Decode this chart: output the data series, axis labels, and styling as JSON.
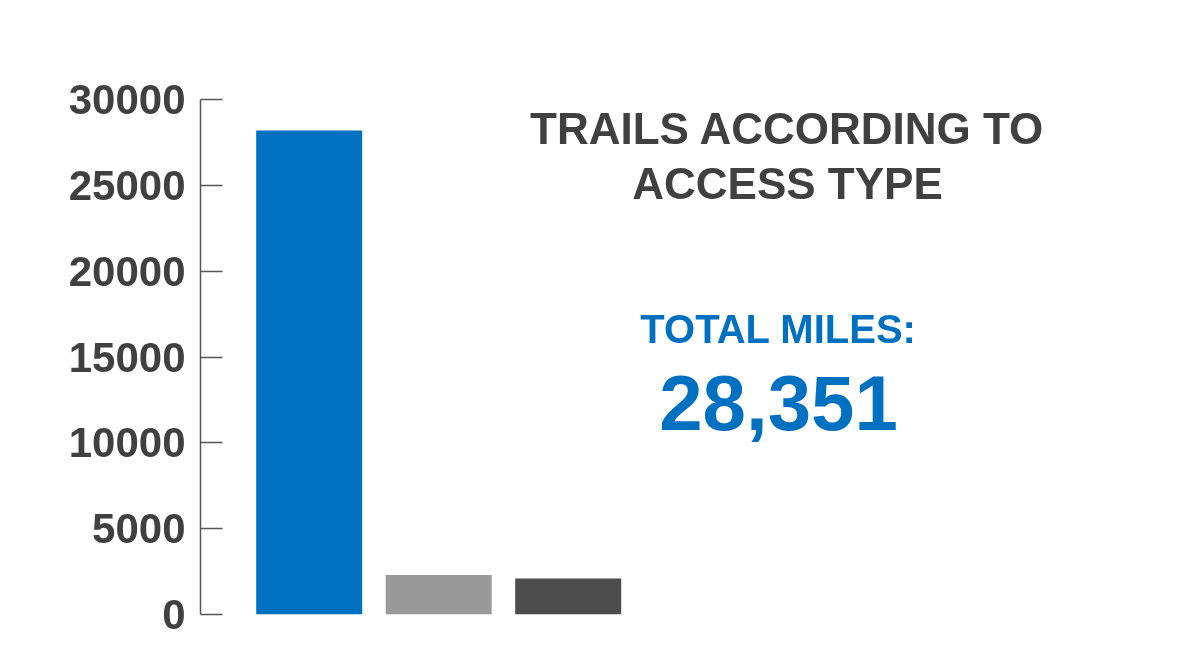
{
  "chart_data": {
    "type": "bar",
    "title": "TRAILS ACCORDING TO ACCESS TYPE",
    "categories": [
      null,
      null,
      null
    ],
    "values": [
      28200,
      2300,
      2100
    ],
    "colors": [
      "#0070c0",
      "#999999",
      "#4d4d4d"
    ],
    "ylim": [
      0,
      30000
    ],
    "yticks": [
      0,
      5000,
      10000,
      15000,
      20000,
      25000,
      30000
    ],
    "annotations": [
      "TOTAL MILES:",
      "28,351"
    ]
  }
}
